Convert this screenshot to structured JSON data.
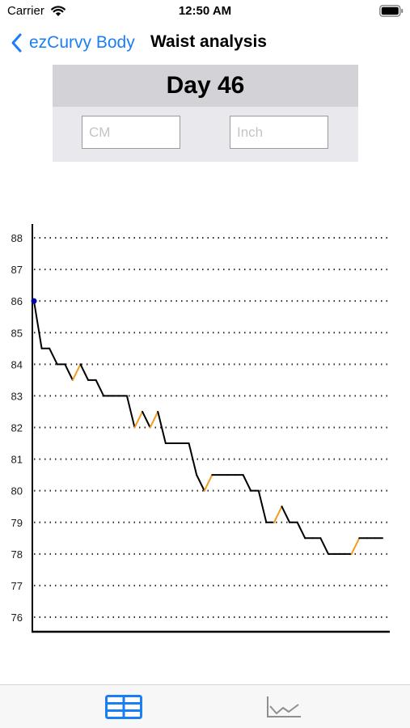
{
  "status_bar": {
    "carrier": "Carrier",
    "time": "12:50 AM"
  },
  "nav": {
    "back_label": "ezCurvy Body",
    "title": "Waist analysis"
  },
  "day_panel": {
    "day_label": "Day 46",
    "cm_placeholder": "CM",
    "inch_placeholder": "Inch"
  },
  "tabs": [
    {
      "icon": "table-icon",
      "selected": true
    },
    {
      "icon": "chart-icon",
      "selected": false
    }
  ],
  "colors": {
    "accent": "#1a7ef5",
    "line": "#000000",
    "increase_segment": "#f39c1e",
    "start_point": "#0000aa",
    "tab_selected": "#1a7ef5",
    "tab_unselected": "#8e8e93"
  },
  "chart_data": {
    "type": "line",
    "title": "",
    "xlabel": "",
    "ylabel": "",
    "ylim": [
      76,
      88
    ],
    "yticks": [
      88,
      87,
      86,
      85,
      84,
      83,
      82,
      81,
      80,
      79,
      78,
      77,
      76
    ],
    "grid": "dotted-horizontal",
    "x": [
      1,
      2,
      3,
      4,
      5,
      6,
      7,
      8,
      9,
      10,
      11,
      12,
      13,
      14,
      15,
      16,
      17,
      18,
      19,
      20,
      21,
      22,
      23,
      24,
      25,
      26,
      27,
      28,
      29,
      30,
      31,
      32,
      33,
      34,
      35,
      36,
      37,
      38,
      39,
      40,
      41,
      42,
      43,
      44,
      45,
      46
    ],
    "series": [
      {
        "values": [
          86,
          84.5,
          84.5,
          84,
          84,
          83.5,
          84,
          83.5,
          83.5,
          83,
          83,
          83,
          83,
          82,
          82.5,
          82,
          82.5,
          81.5,
          81.5,
          81.5,
          81.5,
          80.5,
          80,
          80.5,
          80.5,
          80.5,
          80.5,
          80.5,
          80,
          80,
          79,
          79,
          79.5,
          79,
          79,
          78.5,
          78.5,
          78.5,
          78,
          78,
          78,
          78,
          78.5,
          78.5,
          78.5,
          78.5
        ]
      }
    ]
  }
}
